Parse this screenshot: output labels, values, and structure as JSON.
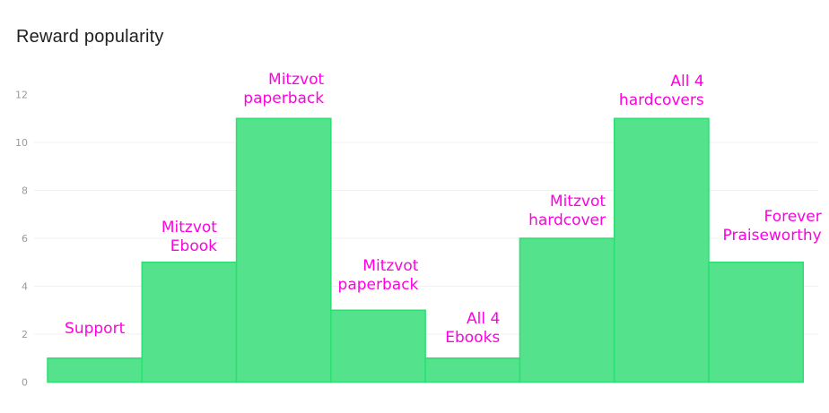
{
  "chart_data": {
    "type": "bar",
    "title": "Reward popularity",
    "categories": [
      "Support",
      "Mitzvot Ebook",
      "Mitzvot paperback",
      "Mitzvot paperback",
      "All 4 Ebooks",
      "Mitzvot hardcover",
      "All 4 hardcovers",
      "Forever Praiseworthy"
    ],
    "label_lines": [
      [
        "Support"
      ],
      [
        "Mitzvot",
        "Ebook"
      ],
      [
        "Mitzvot",
        "paperback"
      ],
      [
        "Mitzvot",
        "paperback"
      ],
      [
        "All 4",
        "Ebooks"
      ],
      [
        "Mitzvot",
        "hardcover"
      ],
      [
        "All 4",
        "hardcovers"
      ],
      [
        "Forever",
        "Praiseworthy"
      ]
    ],
    "values": [
      1,
      5,
      11,
      3,
      1,
      6,
      11,
      5
    ],
    "yticks": [
      0,
      2,
      4,
      6,
      8,
      10,
      12
    ],
    "ylim": [
      0,
      12
    ],
    "grid": true,
    "legend": "none",
    "colors": {
      "bar_fill": "#55e28c",
      "bar_border": "#2bdf72",
      "label_text": "#ff00e1",
      "axis_text": "#9a9a9a",
      "gridline": "#f1f1f4",
      "title_text": "#212121",
      "background": "#ffffff"
    }
  }
}
